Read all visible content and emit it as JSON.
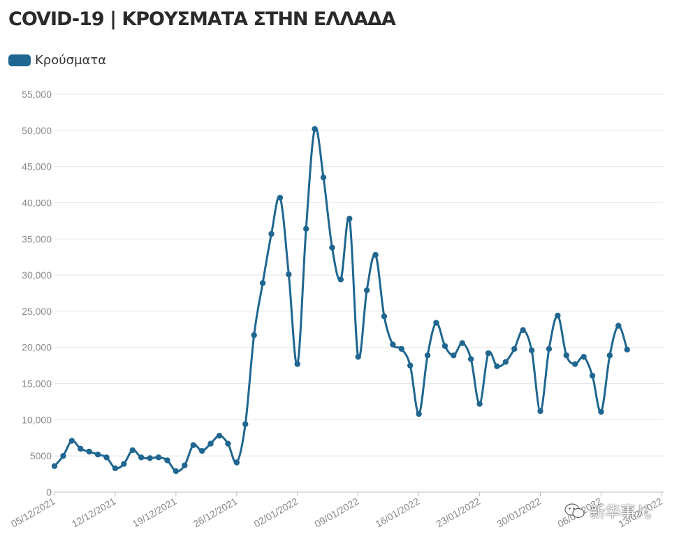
{
  "title": "COVID-19 | ΚΡΟΥΣΜΑΤΑ ΣΤΗΝ ΕΛΛΑΔΑ",
  "legend": {
    "label": "Κρούσματα",
    "color": "#1f6690"
  },
  "watermark": {
    "text": "新华事儿",
    "icon": "wechat-icon"
  },
  "chart_data": {
    "type": "line",
    "title": "COVID-19 | ΚΡΟΥΣΜΑΤΑ ΣΤΗΝ ΕΛΛΑΔΑ",
    "xlabel": "",
    "ylabel": "",
    "x_range": [
      "05/12/2021",
      "13/02/2022"
    ],
    "ylim": [
      0,
      55000
    ],
    "yticks": [
      0,
      5000,
      10000,
      15000,
      20000,
      25000,
      30000,
      35000,
      40000,
      45000,
      50000,
      55000
    ],
    "ytick_labels": [
      "0",
      "5000",
      "10,000",
      "15,000",
      "20,000",
      "25,000",
      "30,000",
      "35,000",
      "40,000",
      "45,000",
      "50,000",
      "55,000"
    ],
    "xtick_labels": [
      "05/12/2021",
      "12/12/2021",
      "19/12/2021",
      "26/12/2021",
      "02/01/2022",
      "09/01/2022",
      "16/01/2022",
      "23/01/2022",
      "30/01/2022",
      "06/02/2022",
      "13/02/2022"
    ],
    "grid": true,
    "legend_position": "top-left",
    "series": [
      {
        "name": "Κρούσματα",
        "color": "#1f6690",
        "x": [
          "05/12/2021",
          "06/12/2021",
          "07/12/2021",
          "08/12/2021",
          "09/12/2021",
          "10/12/2021",
          "11/12/2021",
          "12/12/2021",
          "13/12/2021",
          "14/12/2021",
          "15/12/2021",
          "16/12/2021",
          "17/12/2021",
          "18/12/2021",
          "19/12/2021",
          "20/12/2021",
          "21/12/2021",
          "22/12/2021",
          "23/12/2021",
          "24/12/2021",
          "25/12/2021",
          "26/12/2021",
          "27/12/2021",
          "28/12/2021",
          "29/12/2021",
          "30/12/2021",
          "31/12/2021",
          "01/01/2022",
          "02/01/2022",
          "03/01/2022",
          "04/01/2022",
          "05/01/2022",
          "06/01/2022",
          "07/01/2022",
          "08/01/2022",
          "09/01/2022",
          "10/01/2022",
          "11/01/2022",
          "12/01/2022",
          "13/01/2022",
          "14/01/2022",
          "15/01/2022",
          "16/01/2022",
          "17/01/2022",
          "18/01/2022",
          "19/01/2022",
          "20/01/2022",
          "21/01/2022",
          "22/01/2022",
          "23/01/2022",
          "24/01/2022",
          "25/01/2022",
          "26/01/2022",
          "27/01/2022",
          "28/01/2022",
          "29/01/2022",
          "30/01/2022",
          "31/01/2022",
          "01/02/2022",
          "02/02/2022",
          "03/02/2022",
          "04/02/2022",
          "05/02/2022",
          "06/02/2022",
          "07/02/2022",
          "08/02/2022",
          "09/02/2022"
        ],
        "values": [
          3600,
          5000,
          7100,
          6000,
          5600,
          5200,
          4800,
          3300,
          3900,
          5800,
          4800,
          4700,
          4800,
          4400,
          2900,
          3700,
          6500,
          5700,
          6700,
          7800,
          6700,
          4100,
          9400,
          21700,
          28900,
          35700,
          40700,
          30100,
          17700,
          36400,
          50200,
          43500,
          33800,
          29400,
          37800,
          18700,
          27900,
          32800,
          24300,
          20400,
          19800,
          17500,
          10800,
          18900,
          23400,
          20200,
          18900,
          20600,
          18400,
          12200,
          19200,
          17400,
          18000,
          19800,
          22400,
          19600,
          11200,
          19800,
          24400,
          18900,
          17700,
          18700,
          16100,
          11100,
          18900,
          23000,
          19700
        ]
      }
    ]
  }
}
